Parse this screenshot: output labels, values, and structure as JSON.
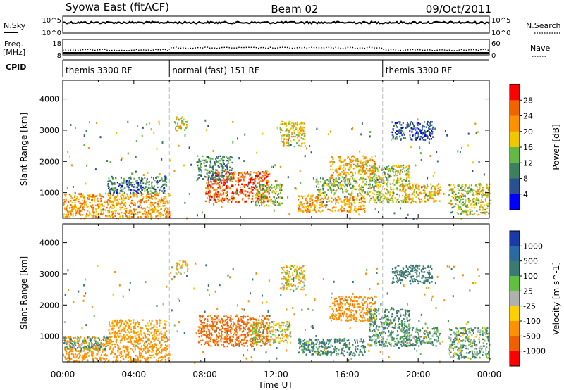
{
  "header": {
    "title": "Syowa East (fitACF)",
    "beam": "Beam 02",
    "date": "09/Oct/2011"
  },
  "noise_panel": {
    "left_label": "N.Sky",
    "right_label": "N.Search",
    "left_ticks": [
      "10^5",
      "10^0"
    ],
    "right_ticks": [
      "10^5",
      "10^0"
    ]
  },
  "freq_panel": {
    "left_label": "Freq.",
    "left_unit": "[MHz]",
    "right_label": "Nave",
    "left_ticks": [
      "18",
      "8"
    ],
    "right_ticks": [
      "60",
      "0"
    ]
  },
  "cpid": {
    "label": "CPID",
    "segments": [
      {
        "label": "themis 3300 RF",
        "start_hour": 0,
        "end_hour": 6
      },
      {
        "label": "normal (fast) 151 RF",
        "start_hour": 6,
        "end_hour": 18
      },
      {
        "label": "themis 3300 RF",
        "start_hour": 18,
        "end_hour": 24
      }
    ]
  },
  "chart_data": [
    {
      "type": "heatmap",
      "panel": "power",
      "ylabel": "Slant Range [km]",
      "xlim": [
        0,
        24
      ],
      "ylim": [
        180,
        4600
      ],
      "yticks": [
        1000,
        2000,
        3000,
        4000
      ],
      "colorbar": {
        "label": "Power [dB]",
        "ticks": [
          "28",
          "24",
          "20",
          "16",
          "12",
          "8",
          "4"
        ],
        "colors": [
          "#ff0000",
          "#f26400",
          "#ff9000",
          "#f0c800",
          "#66b844",
          "#3f7f5f",
          "#2a5090",
          "#0000ff"
        ]
      },
      "echo_regions": [
        {
          "x": [
            0.0,
            6.0
          ],
          "y": [
            200,
            1000
          ],
          "value": 22
        },
        {
          "x": [
            2.5,
            5.8
          ],
          "y": [
            1000,
            1550
          ],
          "value": 8
        },
        {
          "x": [
            6.3,
            7.0
          ],
          "y": [
            3000,
            3450
          ],
          "value": 18
        },
        {
          "x": [
            8.0,
            11.6
          ],
          "y": [
            700,
            1700
          ],
          "value": 27
        },
        {
          "x": [
            7.5,
            9.5
          ],
          "y": [
            1400,
            2200
          ],
          "value": 10
        },
        {
          "x": [
            10.8,
            12.3
          ],
          "y": [
            600,
            1300
          ],
          "value": 14
        },
        {
          "x": [
            12.2,
            13.6
          ],
          "y": [
            2500,
            3300
          ],
          "value": 18
        },
        {
          "x": [
            13.2,
            17.0
          ],
          "y": [
            400,
            950
          ],
          "value": 22
        },
        {
          "x": [
            14.2,
            17.3
          ],
          "y": [
            950,
            1500
          ],
          "value": 14
        },
        {
          "x": [
            15.0,
            17.6
          ],
          "y": [
            1500,
            2200
          ],
          "value": 20
        },
        {
          "x": [
            17.2,
            19.5
          ],
          "y": [
            700,
            1900
          ],
          "value": 16
        },
        {
          "x": [
            18.5,
            20.8
          ],
          "y": [
            2700,
            3300
          ],
          "value": 6
        },
        {
          "x": [
            19.0,
            21.2
          ],
          "y": [
            700,
            1300
          ],
          "value": 20
        },
        {
          "x": [
            21.7,
            24.0
          ],
          "y": [
            300,
            1300
          ],
          "value": 16
        }
      ]
    },
    {
      "type": "heatmap",
      "panel": "velocity",
      "xlabel": "Time UT",
      "ylabel": "Slant Range [km]",
      "xlim": [
        0,
        24
      ],
      "ylim": [
        180,
        4600
      ],
      "xticks": [
        "00:00",
        "04:00",
        "08:00",
        "12:00",
        "16:00",
        "20:00",
        "00:00"
      ],
      "yticks": [
        1000,
        2000,
        3000,
        4000
      ],
      "colorbar": {
        "label": "Velocity [m s^-1]",
        "ticks": [
          "1000",
          "500",
          "100",
          "25",
          "-25",
          "-100",
          "-500",
          "-1000"
        ],
        "colors": [
          "#1a3aaa",
          "#2a6aa0",
          "#3a7a70",
          "#60c040",
          "#b0b0b0",
          "#ffd000",
          "#ff9000",
          "#f06000",
          "#ff0000"
        ]
      },
      "echo_regions": [
        {
          "x": [
            0.0,
            6.0
          ],
          "y": [
            200,
            1000
          ],
          "value": -300
        },
        {
          "x": [
            0.0,
            2.5
          ],
          "y": [
            600,
            1000
          ],
          "value": 120
        },
        {
          "x": [
            2.5,
            5.8
          ],
          "y": [
            1000,
            1550
          ],
          "value": -200
        },
        {
          "x": [
            6.3,
            7.0
          ],
          "y": [
            3000,
            3450
          ],
          "value": -60
        },
        {
          "x": [
            7.6,
            11.6
          ],
          "y": [
            700,
            1700
          ],
          "value": -600
        },
        {
          "x": [
            10.5,
            12.8
          ],
          "y": [
            800,
            1500
          ],
          "value": 0
        },
        {
          "x": [
            12.2,
            13.6
          ],
          "y": [
            2500,
            3300
          ],
          "value": -60
        },
        {
          "x": [
            13.2,
            17.0
          ],
          "y": [
            400,
            950
          ],
          "value": 200
        },
        {
          "x": [
            15.0,
            17.6
          ],
          "y": [
            1500,
            2300
          ],
          "value": -400
        },
        {
          "x": [
            17.2,
            19.5
          ],
          "y": [
            700,
            1900
          ],
          "value": 150
        },
        {
          "x": [
            18.5,
            20.8
          ],
          "y": [
            2700,
            3300
          ],
          "value": 300
        },
        {
          "x": [
            19.0,
            21.2
          ],
          "y": [
            700,
            1300
          ],
          "value": 120
        },
        {
          "x": [
            21.7,
            24.0
          ],
          "y": [
            300,
            1300
          ],
          "value": 80
        }
      ]
    }
  ]
}
